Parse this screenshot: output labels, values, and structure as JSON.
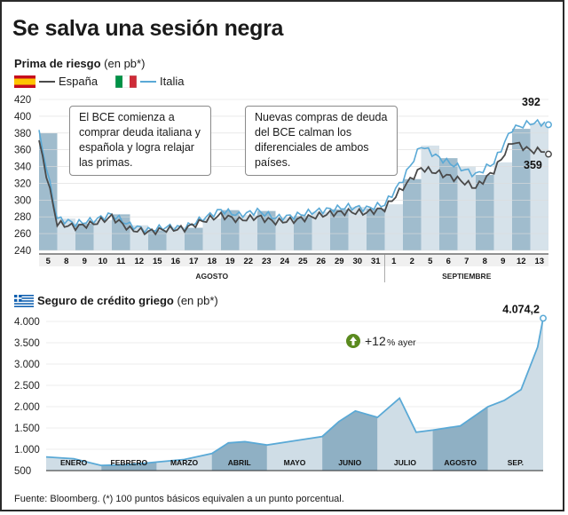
{
  "title": "Se salva una sesión negra",
  "chart_data": [
    {
      "type": "line",
      "title": "Prima de riesgo",
      "unit": "(en pb*)",
      "legend": [
        "España",
        "Italia"
      ],
      "ylim": [
        240,
        420
      ],
      "yticks": [
        240,
        260,
        280,
        300,
        320,
        340,
        360,
        380,
        400,
        420
      ],
      "xticks": [
        "5",
        "8",
        "9",
        "10",
        "11",
        "12",
        "15",
        "16",
        "17",
        "18",
        "19",
        "22",
        "23",
        "24",
        "25",
        "26",
        "29",
        "30",
        "31",
        "1",
        "2",
        "5",
        "6",
        "7",
        "8",
        "9",
        "12",
        "13"
      ],
      "months": [
        "AGOSTO",
        "SEPTIEMBRE"
      ],
      "series": [
        {
          "name": "España",
          "x": [
            "5",
            "8",
            "9",
            "10",
            "11",
            "12",
            "15",
            "16",
            "17",
            "18",
            "19",
            "22",
            "23",
            "24",
            "25",
            "26",
            "29",
            "30",
            "31",
            "1",
            "2",
            "5",
            "6",
            "7",
            "8",
            "9",
            "12",
            "13"
          ],
          "values": [
            370,
            272,
            268,
            272,
            280,
            265,
            262,
            265,
            266,
            275,
            282,
            276,
            280,
            274,
            276,
            280,
            284,
            286,
            285,
            290,
            315,
            338,
            332,
            325,
            315,
            335,
            370,
            359
          ]
        },
        {
          "name": "Italia",
          "x": [
            "5",
            "8",
            "9",
            "10",
            "11",
            "12",
            "15",
            "16",
            "17",
            "18",
            "19",
            "22",
            "23",
            "24",
            "25",
            "26",
            "29",
            "30",
            "31",
            "1",
            "2",
            "5",
            "6",
            "7",
            "8",
            "9",
            "12",
            "13"
          ],
          "values": [
            380,
            278,
            272,
            276,
            283,
            270,
            264,
            268,
            267,
            278,
            288,
            282,
            287,
            279,
            281,
            286,
            289,
            292,
            290,
            295,
            325,
            365,
            350,
            340,
            330,
            345,
            385,
            392
          ]
        }
      ],
      "labels": {
        "last_italia": "392",
        "last_espana": "359"
      },
      "annotations": [
        "El BCE comienza a comprar deuda italiana y española y logra relajar las primas.",
        "Nuevas compras de deuda del BCE calman los diferenciales de ambos países."
      ]
    },
    {
      "type": "area",
      "title": "Seguro de crédito griego",
      "unit": "(en pb*)",
      "ylim": [
        500,
        4000
      ],
      "yticks": [
        500,
        1000,
        1500,
        2000,
        2500,
        3000,
        3500,
        4000
      ],
      "ytick_labels": [
        "500",
        "1.000",
        "1.500",
        "2.000",
        "2.500",
        "3.000",
        "3.500",
        "4.000"
      ],
      "months": [
        "ENERO",
        "FEBRERO",
        "MARZO",
        "ABRIL",
        "MAYO",
        "JUNIO",
        "JULIO",
        "AGOSTO",
        "SEP."
      ],
      "x": [
        0,
        0.5,
        1,
        1.5,
        2,
        2.5,
        3,
        3.3,
        3.6,
        4,
        4.5,
        5,
        5.3,
        5.6,
        6,
        6.4,
        6.7,
        7,
        7.5,
        8,
        8.3,
        8.6,
        8.9,
        9.0
      ],
      "values": [
        820,
        780,
        620,
        640,
        700,
        760,
        900,
        1150,
        1180,
        1100,
        1200,
        1300,
        1650,
        1900,
        1750,
        2200,
        1400,
        1450,
        1550,
        2000,
        2150,
        2400,
        3400,
        4074.2
      ],
      "last_label": "4.074,2",
      "badge": {
        "value": "+12",
        "suffix": "% ayer",
        "icon": "up-arrow-icon",
        "color": "#5a8a1e"
      }
    }
  ],
  "subtitle_bond": {
    "bold": "Prima de riesgo",
    "unit": "(en pb*)"
  },
  "subtitle_cds": {
    "bold": "Seguro de crédito griego",
    "unit": "(en pb*)"
  },
  "legend_labels": {
    "spain": "España",
    "italy": "Italia"
  },
  "source": "Fuente: Bloomberg. (*) 100 puntos básicos equivalen a un punto porcentual.",
  "colors": {
    "spain_line": "#4a4a4a",
    "italy_line": "#5aa9d6",
    "area": "#a9c4d4",
    "band_dark": "#8fb0c4",
    "band_light": "#cfdde6",
    "axis_bar": "#2a2a2a"
  }
}
